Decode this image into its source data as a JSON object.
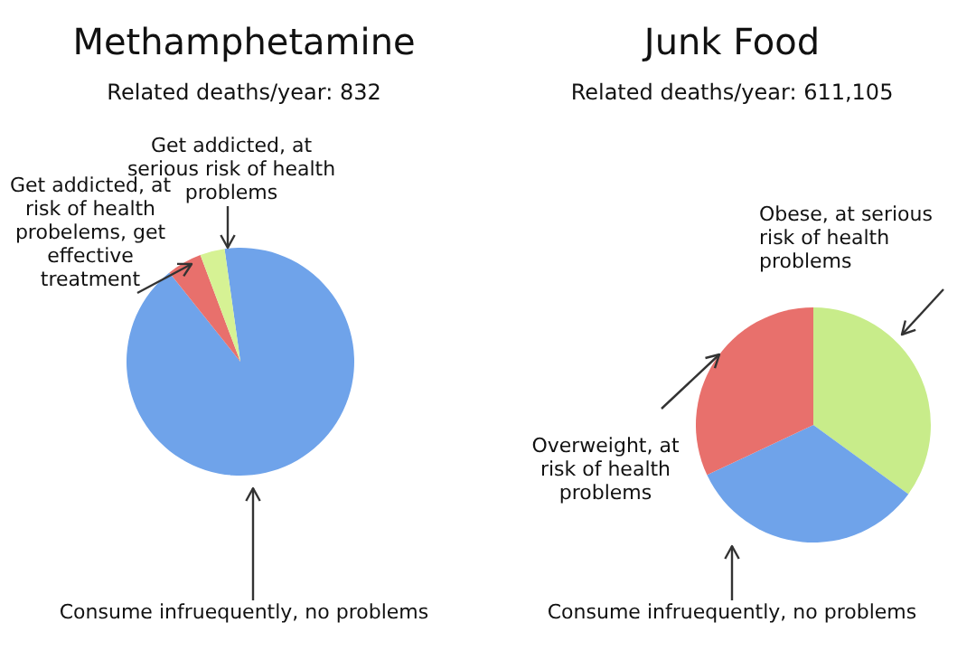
{
  "chart_data": [
    {
      "type": "pie",
      "title": "Methamphetamine",
      "subtitle": "Related deaths/year: 832",
      "categories": [
        "Consume infruequently, no problems",
        "Get addicted, at risk of health probelems, get effective treatment",
        "Get addicted, at serious risk of health problems"
      ],
      "values": [
        91.5,
        5,
        3.5
      ],
      "colors": [
        "#6fa3ea",
        "#e8706c",
        "#d6f294"
      ]
    },
    {
      "type": "pie",
      "title": "Junk Food",
      "subtitle": "Related deaths/year: 611,105",
      "categories": [
        "Obese, at serious risk of health problems",
        "Consume infruequently, no problems",
        "Overweight, at risk of health problems"
      ],
      "values": [
        35,
        33,
        32
      ],
      "colors": [
        "#c8ec8a",
        "#6fa3ea",
        "#e8706c"
      ]
    }
  ]
}
